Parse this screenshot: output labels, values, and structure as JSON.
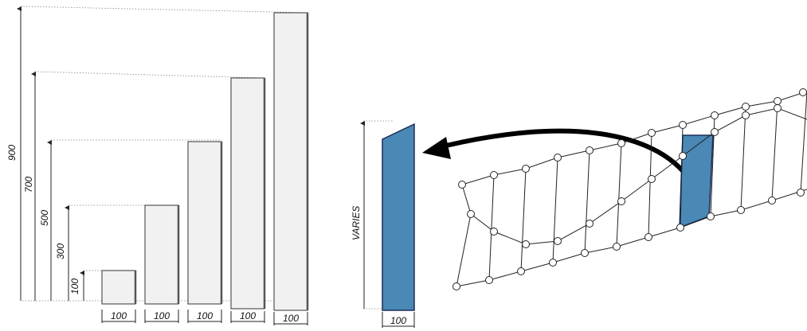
{
  "left_figure": {
    "panel_width_label": "100",
    "panels": [
      {
        "height_label": "100",
        "height": 100
      },
      {
        "height_label": "300",
        "height": 300
      },
      {
        "height_label": "500",
        "height": 500
      },
      {
        "height_label": "700",
        "height": 700
      },
      {
        "height_label": "900",
        "height": 900
      }
    ]
  },
  "right_figure": {
    "height_label": "VARIES",
    "width_label": "100"
  },
  "colors": {
    "panel_fill": "#f1f1f1",
    "highlight": "#4a88b5",
    "highlight_edge": "#1c2d5a"
  }
}
